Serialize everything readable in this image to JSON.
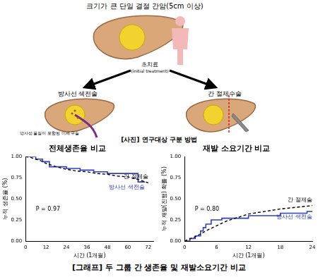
{
  "diagram": {
    "title": "크기가 큰 단일 결절 간암(5cm 이상)",
    "initial": "초치료",
    "initial_en": "(initial treatment)",
    "left": "방사선 색전술",
    "left_note": "방사성 물질이 포함된 미세 구슬",
    "right": "간 절제수술",
    "caption": "[사진] 연구대상 구분 방법"
  },
  "caption": "[그래프] 두 그룹 간 생존율 및 재발소요기간 비교",
  "chart_data": [
    {
      "type": "line",
      "title": "전체생존율 비교",
      "xlabel": "시간 (1개월)",
      "ylabel": "누적 생존율 (%)",
      "annotation": "P = 0.97",
      "xlim": [
        0,
        75
      ],
      "xticks": [
        0,
        12,
        24,
        36,
        48,
        60,
        72
      ],
      "ylim": [
        0,
        1
      ],
      "yticks": [
        {
          "value": 0,
          "label": "0.00"
        },
        {
          "value": 0.25,
          "label": "0.25"
        },
        {
          "value": 0.5,
          "label": "0.50"
        },
        {
          "value": 0.75,
          "label": "0.75"
        },
        {
          "value": 1,
          "label": "1.00"
        }
      ],
      "grid": false,
      "series": [
        {
          "name": "간 절제술",
          "color": "#000000",
          "line_style": "dashed",
          "type": "line",
          "x": [
            0,
            3,
            6,
            9,
            12,
            15,
            18,
            24,
            30,
            36,
            42,
            48,
            54,
            60,
            66,
            72
          ],
          "values": [
            1,
            0.99,
            0.97,
            0.95,
            0.92,
            0.9,
            0.88,
            0.85,
            0.83,
            0.82,
            0.8,
            0.79,
            0.77,
            0.76,
            0.73,
            0.69
          ]
        },
        {
          "name": "방사선 색전술",
          "color": "#2e3fbf",
          "line_style": "solid",
          "type": "step",
          "x": [
            0,
            6,
            10,
            14,
            24,
            32,
            40,
            48,
            54,
            66,
            70
          ],
          "values": [
            1,
            0.97,
            0.94,
            0.88,
            0.86,
            0.84,
            0.82,
            0.8,
            0.8,
            0.7,
            0.7
          ]
        }
      ]
    },
    {
      "type": "line",
      "title": "재발 소요기간 비교",
      "xlabel": "시간 (1개월)",
      "ylabel": "누적 재발(진행) 확률 (%)",
      "annotation": "P = 0.80",
      "xlim": [
        0,
        24
      ],
      "xticks": [
        0,
        6,
        12,
        18,
        24
      ],
      "ylim": [
        0,
        1
      ],
      "yticks": [
        {
          "value": 0,
          "label": "0.00"
        },
        {
          "value": 0.25,
          "label": "0.25"
        },
        {
          "value": 0.5,
          "label": "0.50"
        },
        {
          "value": 0.75,
          "label": "0.75"
        },
        {
          "value": 1,
          "label": "1.00"
        }
      ],
      "grid": false,
      "series": [
        {
          "name": "간 절제술",
          "color": "#000000",
          "line_style": "dashed",
          "type": "line",
          "x": [
            0,
            2,
            4,
            6,
            8,
            10,
            12,
            15,
            18,
            21,
            24
          ],
          "values": [
            0,
            0.05,
            0.12,
            0.18,
            0.24,
            0.28,
            0.32,
            0.35,
            0.38,
            0.4,
            0.42
          ]
        },
        {
          "name": "방사선 색전술",
          "color": "#2e3fbf",
          "line_style": "solid",
          "type": "step",
          "x": [
            0,
            1,
            2,
            3,
            3.5,
            4,
            5,
            7,
            12,
            18,
            23,
            24
          ],
          "values": [
            0,
            0.03,
            0.06,
            0.12,
            0.16,
            0.2,
            0.25,
            0.27,
            0.3,
            0.33,
            0.35,
            0.35
          ]
        }
      ]
    }
  ]
}
